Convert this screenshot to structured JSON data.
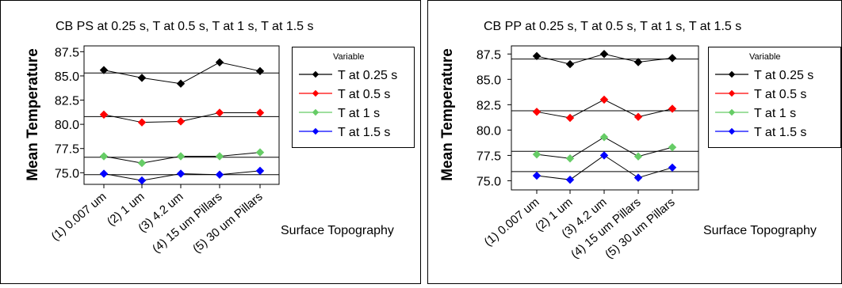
{
  "chart_data": [
    {
      "type": "line",
      "title": "CB PS at 0.25 s, T at 0.5 s, T at 1 s, T at 1.5 s",
      "xlabel": "Surface Topography",
      "ylabel": "Mean Temperature",
      "categories": [
        "(1) 0.007 um",
        "(2) 1 um",
        "(3) 4.2 um",
        "(4) 15 um Pillars",
        "(5) 30 um Pillars"
      ],
      "yticks": [
        "87.5",
        "85.0",
        "82.5",
        "80.0",
        "77.5",
        "75.0"
      ],
      "ytick_values": [
        87.5,
        85.0,
        82.5,
        80.0,
        77.5,
        75.0
      ],
      "ylim": [
        73.8,
        88.1
      ],
      "legend_title": "Variable",
      "legend_position": "right",
      "grid": false,
      "series": [
        {
          "name": "T at 0.25 s",
          "color": "#000000",
          "values": [
            85.6,
            84.8,
            84.2,
            86.4,
            85.5
          ],
          "mean": 85.3
        },
        {
          "name": "T at 0.5 s",
          "color": "#ff0000",
          "values": [
            81.0,
            80.2,
            80.3,
            81.2,
            81.2
          ],
          "mean": 80.8
        },
        {
          "name": "T at 1 s",
          "color": "#66cc66",
          "values": [
            76.7,
            76.0,
            76.7,
            76.7,
            77.1
          ],
          "mean": 76.6
        },
        {
          "name": "T at 1.5 s",
          "color": "#0000ff",
          "values": [
            74.9,
            74.2,
            74.9,
            74.8,
            75.2
          ],
          "mean": 74.8
        }
      ]
    },
    {
      "type": "line",
      "title": "CB PP at 0.25 s, T at 0.5 s, T at 1 s, T at 1.5 s",
      "xlabel": "Surface Topography",
      "ylabel": "Mean Temperature",
      "categories": [
        "(1) 0.007 um",
        "(2) 1 um",
        "(3) 4.2 um",
        "(4) 15 um Pillars",
        "(5) 30 um Pillars"
      ],
      "yticks": [
        "87.5",
        "85.0",
        "82.5",
        "80.0",
        "77.5",
        "75.0"
      ],
      "ytick_values": [
        87.5,
        85.0,
        82.5,
        80.0,
        77.5,
        75.0
      ],
      "ylim": [
        74.1,
        88.3
      ],
      "legend_title": "Variable",
      "legend_position": "right",
      "grid": false,
      "series": [
        {
          "name": "T at 0.25 s",
          "color": "#000000",
          "values": [
            87.3,
            86.5,
            87.5,
            86.7,
            87.1
          ],
          "mean": 87.0
        },
        {
          "name": "T at 0.5 s",
          "color": "#ff0000",
          "values": [
            81.8,
            81.2,
            83.0,
            81.3,
            82.1
          ],
          "mean": 81.9
        },
        {
          "name": "T at 1 s",
          "color": "#66cc66",
          "values": [
            77.6,
            77.2,
            79.3,
            77.4,
            78.3
          ],
          "mean": 77.9
        },
        {
          "name": "T at 1.5 s",
          "color": "#0000ff",
          "values": [
            75.5,
            75.1,
            77.5,
            75.3,
            76.3
          ],
          "mean": 75.9
        }
      ]
    }
  ]
}
